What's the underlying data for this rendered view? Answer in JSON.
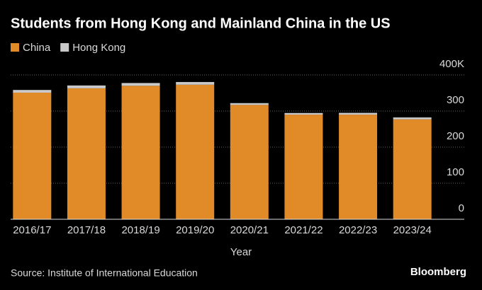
{
  "chart_data": {
    "type": "stacked-bar",
    "title": "Students from Hong Kong and Mainland China in the US",
    "x_label": "Year",
    "source": "Source: Institute of International Education",
    "credit": "Bloomberg",
    "categories": [
      "2016/17",
      "2017/18",
      "2018/19",
      "2019/20",
      "2020/21",
      "2021/22",
      "2022/23",
      "2023/24"
    ],
    "series": [
      {
        "name": "China",
        "color": "#e08b27",
        "values": [
          351,
          363,
          370,
          373,
          317,
          290,
          290,
          277
        ]
      },
      {
        "name": "Hong Kong",
        "color": "#c9c9c9",
        "values": [
          7.5,
          7.9,
          7.7,
          7.5,
          5.0,
          4.6,
          5.0,
          5.3
        ]
      }
    ],
    "ylim": [
      0,
      400
    ],
    "yticks": [
      0,
      100,
      200,
      300,
      {
        "value": 400,
        "label": "400K"
      }
    ],
    "grid": true
  }
}
